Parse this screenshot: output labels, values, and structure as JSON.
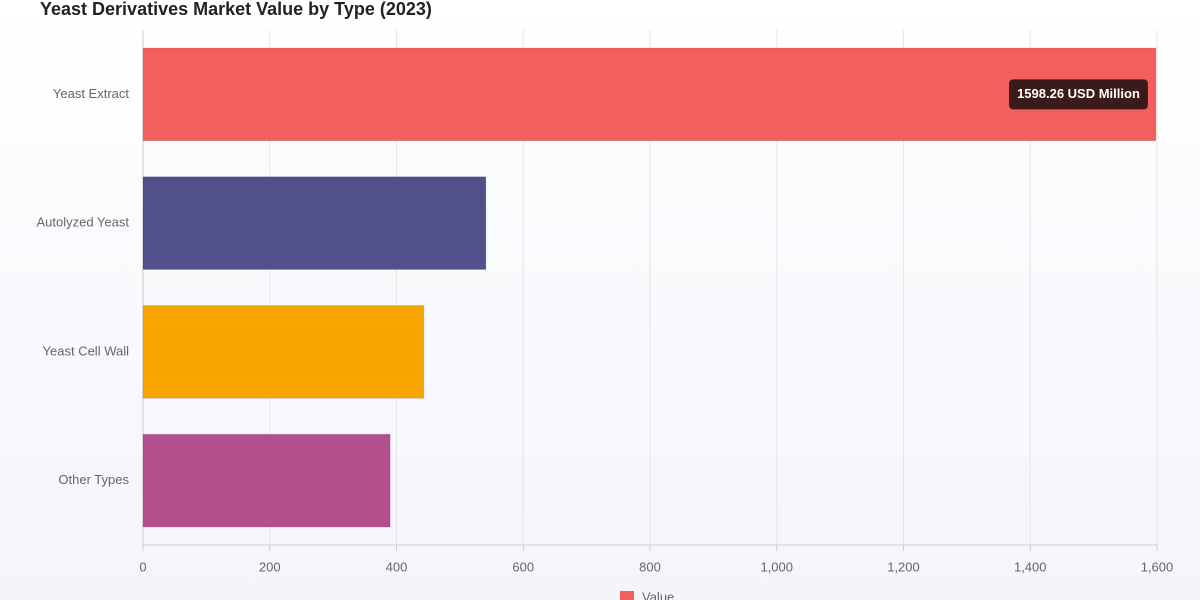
{
  "chart_data": {
    "type": "bar",
    "orientation": "horizontal",
    "title": "Yeast Derivatives Market Value by Type (2023)",
    "categories": [
      "Yeast Extract",
      "Autolyzed Yeast",
      "Yeast Cell Wall",
      "Other Types"
    ],
    "series": [
      {
        "name": "Value",
        "colors": [
          "#f25f5c",
          "#51508a",
          "#f7a400",
          "#b44f8e"
        ],
        "values": [
          1598.26,
          541,
          443,
          390
        ],
        "value_labels": [
          "1598.26 USD Million",
          null,
          null,
          null
        ]
      }
    ],
    "xlim": [
      0,
      1600
    ],
    "xticks": [
      0,
      200,
      400,
      600,
      800,
      {
        "value": 1000,
        "label": "1,000"
      },
      {
        "value": 1200,
        "label": "1,200"
      },
      {
        "value": 1400,
        "label": "1,400"
      },
      {
        "value": 1600,
        "label": "1,600"
      }
    ],
    "grid": true,
    "legend": "bottom"
  }
}
